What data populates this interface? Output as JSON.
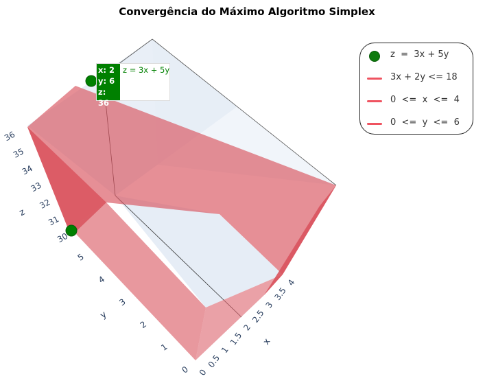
{
  "chart_data": {
    "type": "surface3d",
    "title": "Convergência do Máximo Algoritmo Simplex",
    "axes": {
      "x": {
        "title": "x",
        "range": [
          0,
          4
        ],
        "ticks": [
          "0",
          "0.5",
          "1",
          "1.5",
          "2",
          "2.5",
          "3",
          "3.5",
          "4"
        ]
      },
      "y": {
        "title": "y",
        "range": [
          0,
          6
        ],
        "ticks": [
          "0",
          "1",
          "2",
          "3",
          "4",
          "5"
        ]
      },
      "z": {
        "title": "z",
        "range": [
          30,
          36
        ],
        "ticks": [
          "30",
          "31",
          "32",
          "33",
          "34",
          "35",
          "36"
        ]
      }
    },
    "series": [
      {
        "name": "z  =  3x + 5y",
        "kind": "markers",
        "points": [
          {
            "x": 2,
            "y": 6,
            "z": 36
          },
          {
            "x": 0,
            "y": 6,
            "z": 30
          }
        ],
        "color": "#008000"
      },
      {
        "name": "3x + 2y <= 18",
        "kind": "plane",
        "color": "#ef5360"
      },
      {
        "name": "0  <=  x  <=  4",
        "kind": "plane",
        "color": "#ef5360"
      },
      {
        "name": "0  <=  y  <=  6",
        "kind": "plane",
        "color": "#ef5360"
      }
    ],
    "hover": {
      "x": "x: 2",
      "y": "y: 6",
      "z": "z: 36",
      "trace": "z = 3x + 5y"
    },
    "legend_position": "top-right"
  },
  "colors": {
    "plane": "#d9535e",
    "marker": "#008000",
    "floor": "#e5ecf6",
    "axis_text": "#2a3f5f"
  }
}
